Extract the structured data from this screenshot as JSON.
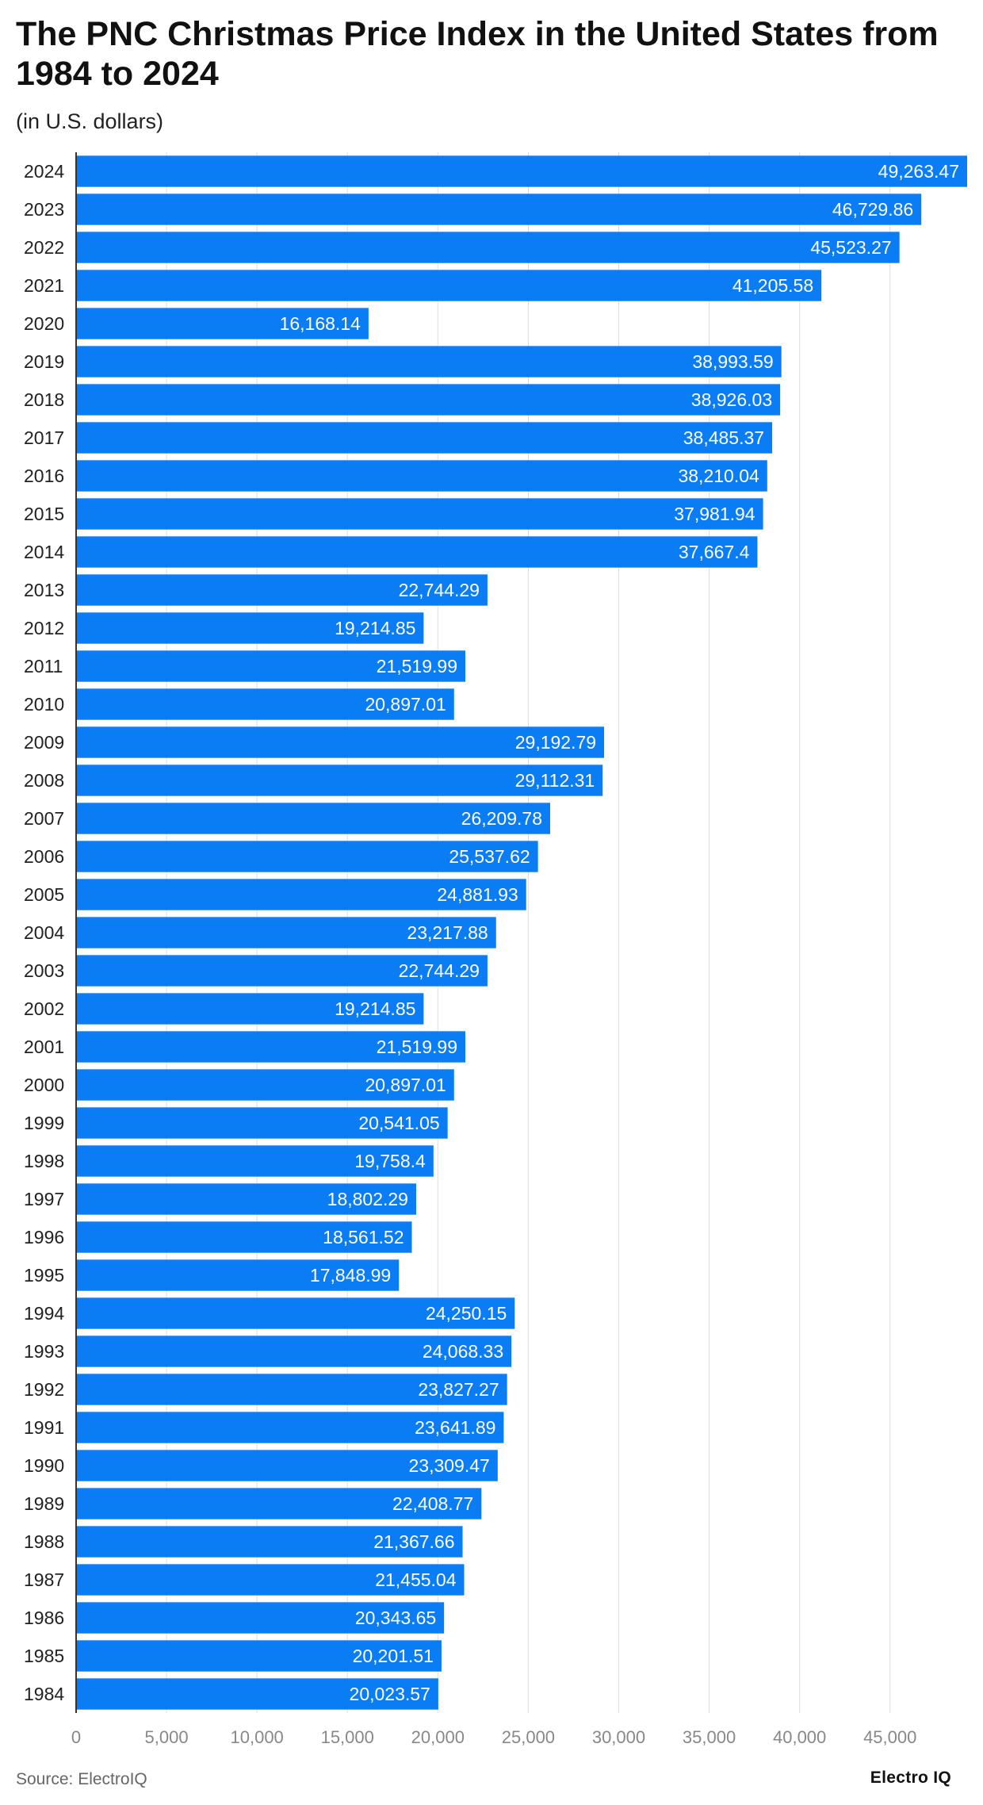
{
  "title": "The PNC Christmas Price Index in the United States from 1984 to 2024",
  "subtitle": "(in U.S. dollars)",
  "source": "Source: ElectroIQ",
  "brand": "Electro IQ",
  "colors": {
    "bar": "#0a7cf4",
    "grid": "#dddddd",
    "axis": "#333333",
    "label_inside": "#ffffff",
    "tick": "#888888"
  },
  "chart_data": {
    "type": "bar",
    "orientation": "horizontal",
    "categories": [
      "2024",
      "2023",
      "2022",
      "2021",
      "2020",
      "2019",
      "2018",
      "2017",
      "2016",
      "2015",
      "2014",
      "2013",
      "2012",
      "2011",
      "2010",
      "2009",
      "2008",
      "2007",
      "2006",
      "2005",
      "2004",
      "2003",
      "2002",
      "2001",
      "2000",
      "1999",
      "1998",
      "1997",
      "1996",
      "1995",
      "1994",
      "1993",
      "1992",
      "1991",
      "1990",
      "1989",
      "1988",
      "1987",
      "1986",
      "1985",
      "1984"
    ],
    "values": [
      49263.47,
      46729.86,
      45523.27,
      41205.58,
      16168.14,
      38993.59,
      38926.03,
      38485.37,
      38210.04,
      37981.94,
      37667.4,
      22744.29,
      19214.85,
      21519.99,
      20897.01,
      29192.79,
      29112.31,
      26209.78,
      25537.62,
      24881.93,
      23217.88,
      22744.29,
      19214.85,
      21519.99,
      20897.01,
      20541.05,
      19758.4,
      18802.29,
      18561.52,
      17848.99,
      24250.15,
      24068.33,
      23827.27,
      23641.89,
      23309.47,
      22408.77,
      21367.66,
      21455.04,
      20343.65,
      20201.51,
      20023.57
    ],
    "value_labels": [
      "49,263.47",
      "46,729.86",
      "45,523.27",
      "41,205.58",
      "16,168.14",
      "38,993.59",
      "38,926.03",
      "38,485.37",
      "38,210.04",
      "37,981.94",
      "37,667.4",
      "22,744.29",
      "19,214.85",
      "21,519.99",
      "20,897.01",
      "29,192.79",
      "29,112.31",
      "26,209.78",
      "25,537.62",
      "24,881.93",
      "23,217.88",
      "22,744.29",
      "19,214.85",
      "21,519.99",
      "20,897.01",
      "20,541.05",
      "19,758.4",
      "18,802.29",
      "18,561.52",
      "17,848.99",
      "24,250.15",
      "24,068.33",
      "23,827.27",
      "23,641.89",
      "23,309.47",
      "22,408.77",
      "21,367.66",
      "21,455.04",
      "20,343.65",
      "20,201.51",
      "20,023.57"
    ],
    "x_ticks": [
      0,
      5000,
      10000,
      15000,
      20000,
      25000,
      30000,
      35000,
      40000,
      45000
    ],
    "x_tick_labels": [
      "0",
      "5,000",
      "10,000",
      "15,000",
      "20,000",
      "25,000",
      "30,000",
      "35,000",
      "40,000",
      "45,000"
    ],
    "xlim": [
      0,
      49263.47
    ],
    "grid": true
  }
}
